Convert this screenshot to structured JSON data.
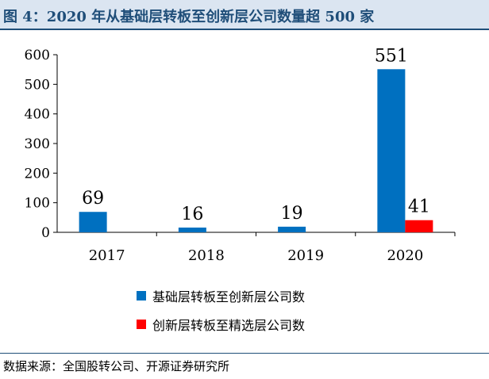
{
  "header": {
    "caption": "图 4：2020 年从基础层转板至创新层公司数量超 500 家"
  },
  "colors": {
    "header_text": "#1f4e79",
    "header_bg": "#dbe5f1",
    "series_blue": "#0070c0",
    "series_red": "#ff0000"
  },
  "chart_data": {
    "type": "bar",
    "title": "",
    "xlabel": "",
    "ylabel": "",
    "categories": [
      "2017",
      "2018",
      "2019",
      "2020"
    ],
    "ylim": [
      0,
      600
    ],
    "yticks": [
      0,
      100,
      200,
      300,
      400,
      500,
      600
    ],
    "grid": false,
    "legend_position": "bottom",
    "series": [
      {
        "name": "基础层转板至创新层公司数",
        "color": "#0070c0",
        "values": [
          69,
          16,
          19,
          551
        ]
      },
      {
        "name": "创新层转板至精选层公司数",
        "color": "#ff0000",
        "values": [
          null,
          null,
          null,
          41
        ]
      }
    ]
  },
  "legend": {
    "items": [
      {
        "label": "基础层转板至创新层公司数",
        "color": "#0070c0"
      },
      {
        "label": "创新层转板至精选层公司数",
        "color": "#ff0000"
      }
    ]
  },
  "source": {
    "text": "数据来源：全国股转公司、开源证券研究所"
  }
}
